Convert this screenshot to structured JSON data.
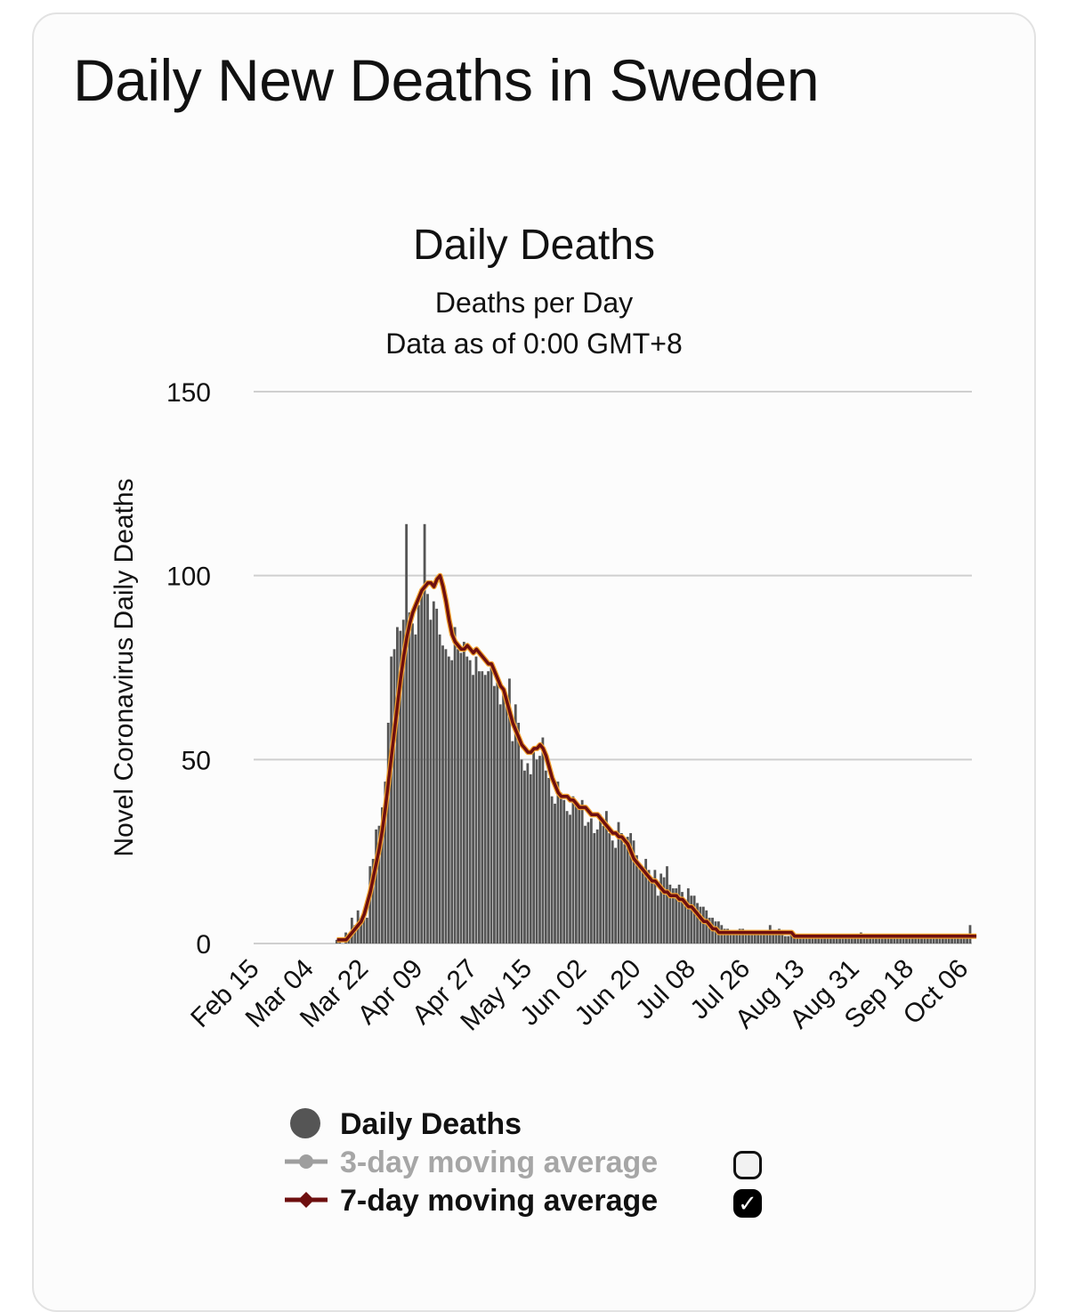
{
  "page": {
    "title": "Daily New Deaths in Sweden"
  },
  "colors": {
    "bars": "#555555",
    "avg7": "#6e0f0f",
    "avg7_glow": "#f2a12e",
    "grid": "#cfcfcf",
    "avg3": "#9e9e9e"
  },
  "legend": {
    "daily": "Daily Deaths",
    "avg3": "3-day moving average",
    "avg3_checked": false,
    "avg7": "7-day moving average",
    "avg7_checked": true
  },
  "chart_data": {
    "type": "bar",
    "title": "Daily Deaths",
    "subtitle": "Deaths per Day",
    "subtitle2": "Data as of 0:00 GMT+8",
    "ylabel": "Novel Coronavirus Daily Deaths",
    "xlabel": "",
    "ylim": [
      0,
      150
    ],
    "yticks": [
      0,
      50,
      100,
      150
    ],
    "grid": true,
    "legend_position": "bottom",
    "x_tick_labels": [
      "Feb 15",
      "Mar 04",
      "Mar 22",
      "Apr 09",
      "Apr 27",
      "May 15",
      "Jun 02",
      "Jun 20",
      "Jul 08",
      "Jul 26",
      "Aug 13",
      "Aug 31",
      "Sep 18",
      "Oct 06"
    ],
    "x_start": "Feb 15",
    "x_end": "Oct 10",
    "series": [
      {
        "name": "Daily Deaths",
        "type": "bar",
        "values": [
          0,
          0,
          0,
          0,
          0,
          0,
          0,
          0,
          0,
          0,
          0,
          0,
          0,
          0,
          0,
          0,
          0,
          0,
          0,
          0,
          0,
          0,
          0,
          0,
          0,
          0,
          0,
          1,
          1,
          0,
          3,
          2,
          7,
          5,
          9,
          6,
          8,
          7,
          21,
          23,
          31,
          32,
          37,
          44,
          60,
          78,
          80,
          86,
          85,
          88,
          114,
          90,
          87,
          84,
          92,
          96,
          114,
          95,
          88,
          93,
          91,
          84,
          81,
          80,
          78,
          77,
          86,
          80,
          79,
          82,
          78,
          77,
          73,
          78,
          74,
          74,
          73,
          74,
          75,
          70,
          71,
          65,
          68,
          66,
          72,
          55,
          65,
          60,
          50,
          47,
          49,
          46,
          52,
          50,
          51,
          56,
          47,
          45,
          40,
          38,
          44,
          41,
          39,
          36,
          35,
          40,
          38,
          37,
          39,
          32,
          33,
          34,
          30,
          31,
          35,
          32,
          36,
          30,
          28,
          26,
          33,
          30,
          27,
          29,
          30,
          28,
          24,
          21,
          20,
          23,
          20,
          18,
          20,
          13,
          19,
          18,
          21,
          16,
          15,
          15,
          16,
          14,
          12,
          15,
          13,
          13,
          11,
          10,
          10,
          9,
          7,
          7,
          6,
          6,
          5,
          4,
          4,
          3,
          3,
          3,
          4,
          4,
          3,
          3,
          3,
          3,
          3,
          3,
          3,
          3,
          5,
          3,
          3,
          4,
          3,
          2,
          2,
          3,
          2,
          2,
          2,
          2,
          2,
          2,
          2,
          2,
          2,
          2,
          2,
          2,
          2,
          2,
          2,
          2,
          2,
          2,
          2,
          2,
          2,
          2,
          3,
          2,
          2,
          2,
          2,
          2,
          2,
          2,
          2,
          2,
          2,
          2,
          2,
          2,
          2,
          2,
          2,
          2,
          2,
          2,
          2,
          2,
          2,
          2,
          2,
          2,
          2,
          2,
          2,
          2,
          2,
          2,
          2,
          2,
          2,
          2,
          5
        ]
      },
      {
        "name": "7-day moving average",
        "type": "line",
        "values": [
          0,
          0,
          0,
          0,
          0,
          0,
          0,
          0,
          0,
          0,
          0,
          0,
          0,
          0,
          0,
          0,
          0,
          0,
          0,
          0,
          0,
          0,
          0,
          0,
          0,
          0,
          0,
          1,
          1,
          1,
          1,
          2,
          3,
          4,
          5,
          6,
          8,
          11,
          14,
          18,
          22,
          26,
          31,
          37,
          44,
          51,
          58,
          65,
          72,
          78,
          83,
          87,
          90,
          92,
          94,
          96,
          97,
          98,
          98,
          97,
          99,
          100,
          97,
          93,
          88,
          84,
          82,
          81,
          80,
          80,
          81,
          80,
          79,
          80,
          79,
          78,
          77,
          76,
          76,
          74,
          72,
          70,
          69,
          66,
          63,
          60,
          58,
          56,
          54,
          53,
          52,
          52,
          53,
          53,
          54,
          53,
          51,
          48,
          45,
          43,
          41,
          40,
          40,
          40,
          39,
          39,
          38,
          37,
          37,
          37,
          36,
          35,
          35,
          35,
          34,
          33,
          32,
          31,
          30,
          30,
          29,
          29,
          28,
          27,
          25,
          23,
          22,
          21,
          20,
          19,
          18,
          17,
          17,
          16,
          15,
          14,
          14,
          13,
          13,
          13,
          12,
          12,
          11,
          10,
          10,
          9,
          8,
          7,
          6,
          6,
          5,
          4,
          4,
          3,
          3,
          3,
          3,
          3,
          3,
          3,
          3,
          3,
          3,
          3,
          3,
          3,
          3,
          3,
          3,
          3,
          3,
          3,
          3,
          3,
          3,
          3,
          3,
          3,
          2,
          2,
          2,
          2,
          2,
          2,
          2,
          2,
          2,
          2,
          2,
          2,
          2,
          2,
          2,
          2,
          2,
          2,
          2,
          2,
          2,
          2,
          2,
          2,
          2,
          2,
          2,
          2,
          2,
          2,
          2,
          2,
          2,
          2,
          2,
          2,
          2,
          2,
          2,
          2,
          2,
          2,
          2,
          2,
          2,
          2,
          2,
          2,
          2,
          2,
          2,
          2,
          2,
          2,
          2,
          2,
          2,
          2,
          2,
          2,
          2
        ]
      }
    ]
  }
}
